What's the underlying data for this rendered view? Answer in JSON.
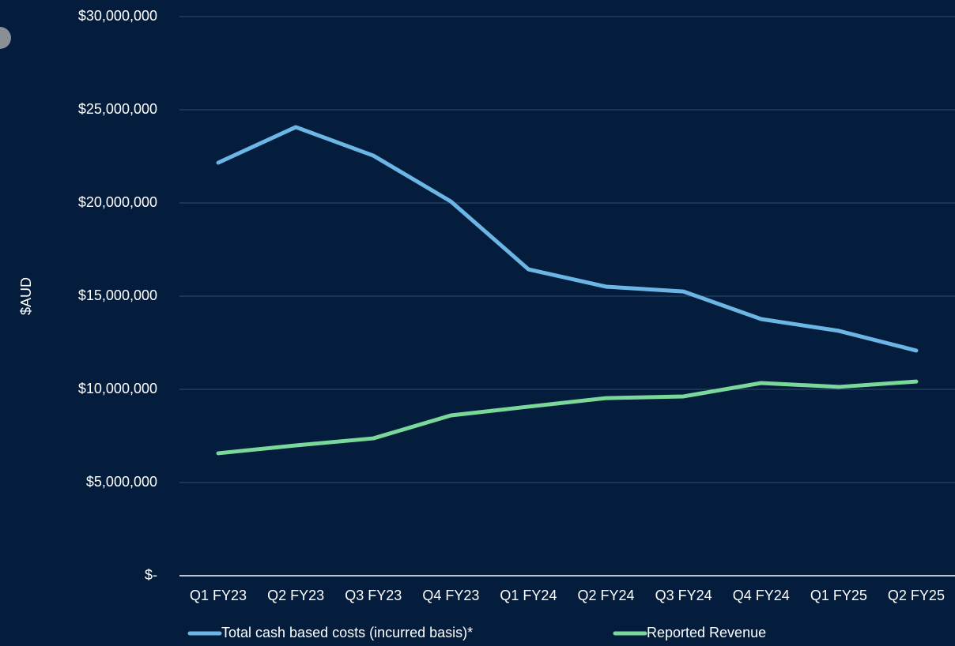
{
  "chart_data": {
    "type": "line",
    "y_label": "$AUD",
    "categories": [
      "Q1 FY23",
      "Q2 FY23",
      "Q3 FY23",
      "Q4 FY23",
      "Q1 FY24",
      "Q2 FY24",
      "Q3 FY24",
      "Q4 FY24",
      "Q1 FY25",
      "Q2 FY25"
    ],
    "series": [
      {
        "name": "Total cash based costs (incurred basis)*",
        "color": "#6cb6e6",
        "values": [
          22160000,
          24070000,
          22540000,
          20080000,
          16440000,
          15510000,
          15250000,
          13770000,
          13140000,
          12080000
        ]
      },
      {
        "name": "Reported Revenue",
        "color": "#7ad99a",
        "values": [
          6570000,
          6990000,
          7370000,
          8600000,
          9070000,
          9530000,
          9620000,
          10340000,
          10130000,
          10420000
        ]
      }
    ],
    "ylim": [
      0,
      30000000
    ],
    "yticks": [
      {
        "value": 0,
        "label": "$-"
      },
      {
        "value": 5000000,
        "label": "$5,000,000"
      },
      {
        "value": 10000000,
        "label": "$10,000,000"
      },
      {
        "value": 15000000,
        "label": "$15,000,000"
      },
      {
        "value": 20000000,
        "label": "$20,000,000"
      },
      {
        "value": 25000000,
        "label": "$25,000,000"
      },
      {
        "value": 30000000,
        "label": "$30,000,000"
      }
    ],
    "grid": true,
    "legend": "bottom"
  }
}
